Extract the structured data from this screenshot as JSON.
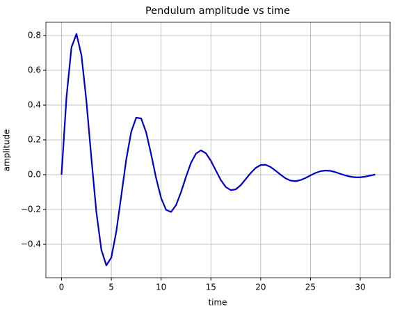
{
  "chart_data": {
    "type": "line",
    "title": "Pendulum amplitude vs time",
    "x_label": "time",
    "y_label": "amplitude",
    "x": [
      0,
      0.5,
      1,
      1.5,
      2,
      2.5,
      3,
      3.5,
      4,
      4.5,
      5,
      5.5,
      6,
      6.5,
      7,
      7.5,
      8,
      8.5,
      9,
      9.5,
      10,
      10.5,
      11,
      11.5,
      12,
      12.5,
      13,
      13.5,
      14,
      14.5,
      15,
      15.5,
      16,
      16.5,
      17,
      17.5,
      18,
      18.5,
      19,
      19.5,
      20,
      20.5,
      21,
      21.5,
      22,
      22.5,
      23,
      23.5,
      24,
      24.5,
      25,
      25.5,
      26,
      26.5,
      27,
      27.5,
      28,
      28.5,
      29,
      29.5,
      30,
      30.5,
      31,
      31.5
    ],
    "series": [
      {
        "color": "#0000cc",
        "values": [
          0,
          0.447,
          0.732,
          0.809,
          0.687,
          0.422,
          0.093,
          -0.215,
          -0.432,
          -0.521,
          -0.476,
          -0.327,
          -0.121,
          0.087,
          0.247,
          0.328,
          0.323,
          0.243,
          0.117,
          -0.02,
          -0.134,
          -0.202,
          -0.214,
          -0.175,
          -0.1,
          -0.012,
          0.068,
          0.121,
          0.14,
          0.123,
          0.08,
          0.024,
          -0.031,
          -0.071,
          -0.089,
          -0.084,
          -0.06,
          -0.025,
          0.01,
          0.039,
          0.056,
          0.057,
          0.044,
          0.023,
          0,
          -0.021,
          -0.034,
          -0.037,
          -0.031,
          -0.019,
          -0.004,
          0.01,
          0.02,
          0.024,
          0.022,
          0.015,
          0.005,
          -0.004,
          -0.011,
          -0.015,
          -0.015,
          -0.011,
          -0.005,
          0.001
        ]
      }
    ],
    "xlim": [
      -1.57,
      33.0
    ],
    "ylim": [
      -0.592,
      0.876
    ],
    "xticks": [
      0,
      5,
      10,
      15,
      20,
      25,
      30
    ],
    "yticks": [
      {
        "value": -0.4,
        "label": "−0.4"
      },
      {
        "value": -0.2,
        "label": "−0.2"
      },
      {
        "value": 0,
        "label": "0.0"
      },
      {
        "value": 0.2,
        "label": "0.2"
      },
      {
        "value": 0.4,
        "label": "0.4"
      },
      {
        "value": 0.6,
        "label": "0.6"
      },
      {
        "value": 0.8,
        "label": "0.8"
      }
    ],
    "grid": true
  }
}
